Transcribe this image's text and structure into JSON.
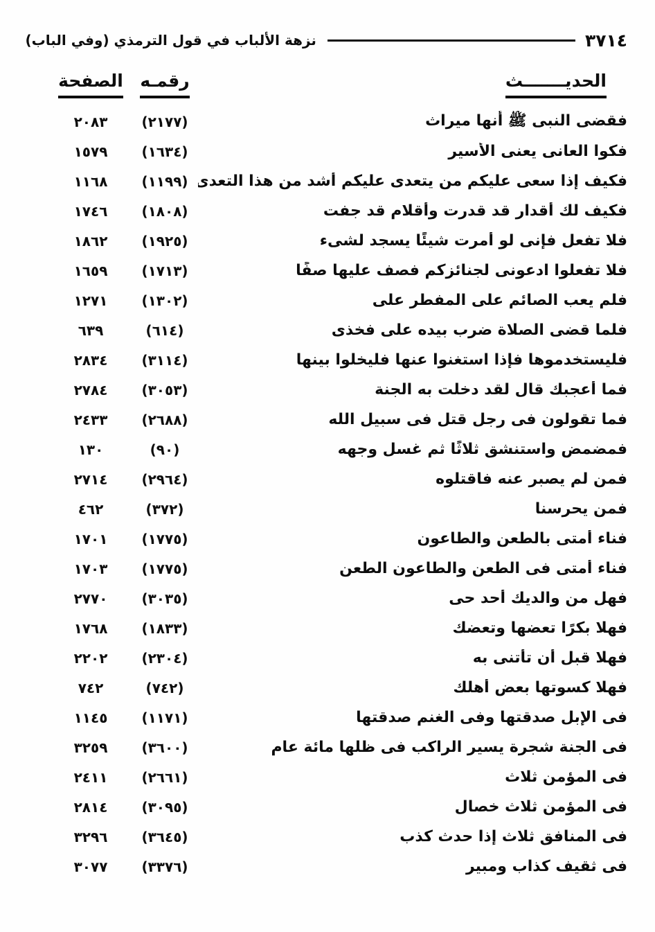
{
  "header": {
    "folio_number": "٣٧١٤",
    "book_title": "نزهة الألباب في قول الترمذي (وفي الباب)"
  },
  "columns": {
    "hadith_label": "الحديـــــــث",
    "number_label": "رقمـه",
    "page_label": "الصفحة"
  },
  "entries": [
    {
      "hadith": "فقضى النبى ﷺ أنها ميراث",
      "number": "(٢١٧٧)",
      "page": "٢٠٨٣"
    },
    {
      "hadith": "فكوا العانى يعنى الأسير",
      "number": "(١٦٣٤)",
      "page": "١٥٧٩"
    },
    {
      "hadith": "فكيف إذا سعى عليكم من يتعدى عليكم أشد من هذا التعدى",
      "number": "(١١٩٩)",
      "page": "١١٦٨"
    },
    {
      "hadith": "فكيف لك أقدار قد قدرت وأقلام قد جفت",
      "number": "(١٨٠٨)",
      "page": "١٧٤٦"
    },
    {
      "hadith": "فلا تفعل فإنى لو أمرت شيئًا يسجد لشىء",
      "number": "(١٩٢٥)",
      "page": "١٨٦٢"
    },
    {
      "hadith": "فلا تفعلوا ادعونى لجنائزكم فصف عليها صفًا",
      "number": "(١٧١٣)",
      "page": "١٦٥٩"
    },
    {
      "hadith": "فلم يعب الصائم على المفطر على",
      "number": "(١٣٠٢)",
      "page": "١٢٧١"
    },
    {
      "hadith": "فلما قضى الصلاة ضرب بيده على فخذى",
      "number": "(٦١٤)",
      "page": "٦٣٩"
    },
    {
      "hadith": "فليستخدموها فإذا استغنوا عنها فليخلوا بينها",
      "number": "(٣١١٤)",
      "page": "٢٨٣٤"
    },
    {
      "hadith": "فما أعجبك قال لقد دخلت به الجنة",
      "number": "(٣٠٥٣)",
      "page": "٢٧٨٤"
    },
    {
      "hadith": "فما تقولون فى رجل قتل فى سبيل الله",
      "number": "(٢٦٨٨)",
      "page": "٢٤٣٣"
    },
    {
      "hadith": "فمضمض واستنشق ثلاثًا ثم غسل وجهه",
      "number": "(٩٠)",
      "page": "١٣٠"
    },
    {
      "hadith": "فمن لم يصبر عنه فاقتلوه",
      "number": "(٢٩٦٤)",
      "page": "٢٧١٤"
    },
    {
      "hadith": "فمن يحرسنا",
      "number": "(٣٧٢)",
      "page": "٤٦٢"
    },
    {
      "hadith": "فناء أمتى بالطعن والطاعون",
      "number": "(١٧٧٥)",
      "page": "١٧٠١"
    },
    {
      "hadith": "فناء أمتى فى الطعن والطاعون الطعن",
      "number": "(١٧٧٥)",
      "page": "١٧٠٣"
    },
    {
      "hadith": "فهل من والديك أحد حى",
      "number": "(٣٠٣٥)",
      "page": "٢٧٧٠"
    },
    {
      "hadith": "فهلا بكرًا تعضها وتعضك",
      "number": "(١٨٣٣)",
      "page": "١٧٦٨"
    },
    {
      "hadith": "فهلا قبل أن تأتنى به",
      "number": "(٢٣٠٤)",
      "page": "٢٢٠٢"
    },
    {
      "hadith": "فهلا كسوتها بعض أهلك",
      "number": "(٧٤٢)",
      "page": "٧٤٢"
    },
    {
      "hadith": "فى الإبل صدقتها وفى الغنم صدقتها",
      "number": "(١١٧١)",
      "page": "١١٤٥"
    },
    {
      "hadith": "فى الجنة شجرة يسير الراكب فى ظلها مائة عام",
      "number": "(٣٦٠٠)",
      "page": "٣٢٥٩"
    },
    {
      "hadith": "فى المؤمن ثلاث",
      "number": "(٢٦٦١)",
      "page": "٢٤١١"
    },
    {
      "hadith": "فى المؤمن ثلاث خصال",
      "number": "(٣٠٩٥)",
      "page": "٢٨١٤"
    },
    {
      "hadith": "فى المنافق ثلاث إذا حدث كذب",
      "number": "(٣٦٤٥)",
      "page": "٣٢٩٦"
    },
    {
      "hadith": "فى ثقيف كذاب ومبير",
      "number": "(٣٣٧٦)",
      "page": "٣٠٧٧"
    }
  ]
}
